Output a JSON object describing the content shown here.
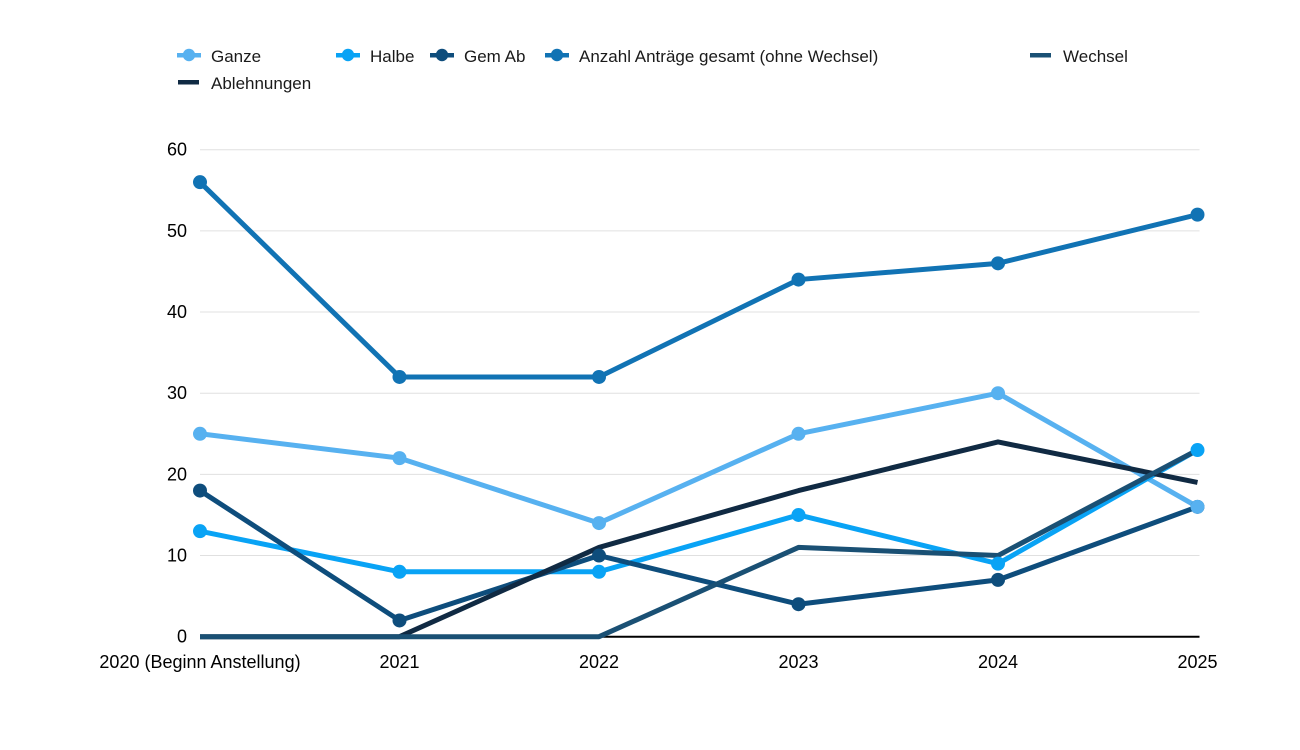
{
  "chart_data": {
    "type": "line",
    "title": "",
    "x_labels": [
      "2020 (Beginn Anstellung)",
      "2021",
      "2022",
      "2023",
      "2024",
      "2025"
    ],
    "y_ticks": [
      0,
      10,
      20,
      30,
      40,
      50,
      60
    ],
    "ylim": [
      0,
      60
    ],
    "grid": true,
    "legend_position": "top",
    "series": [
      {
        "name": "Ganze",
        "color": "#57b1f0",
        "points": true,
        "values": [
          25,
          22,
          14,
          25,
          30,
          16
        ]
      },
      {
        "name": "Halbe",
        "color": "#09a3f5",
        "points": true,
        "values": [
          13,
          8,
          8,
          15,
          9,
          23
        ]
      },
      {
        "name": "Gem Ab",
        "color": "#0e4d7c",
        "points": true,
        "values": [
          18,
          2,
          10,
          4,
          7,
          16
        ]
      },
      {
        "name": "Anzahl Anträge gesamt (ohne Wechsel)",
        "color": "#1173b4",
        "points": true,
        "values": [
          56,
          32,
          32,
          44,
          46,
          52
        ]
      },
      {
        "name": "Wechsel",
        "color": "#1a5074",
        "points": false,
        "values": [
          0,
          0,
          0,
          11,
          10,
          23
        ]
      },
      {
        "name": "Ablehnungen",
        "color": "#102a43",
        "points": false,
        "values": [
          0,
          0,
          11,
          18,
          24,
          19
        ]
      }
    ]
  },
  "colors": {
    "grid": "#e0e0e0",
    "axis": "#000000",
    "text": "#000000"
  }
}
